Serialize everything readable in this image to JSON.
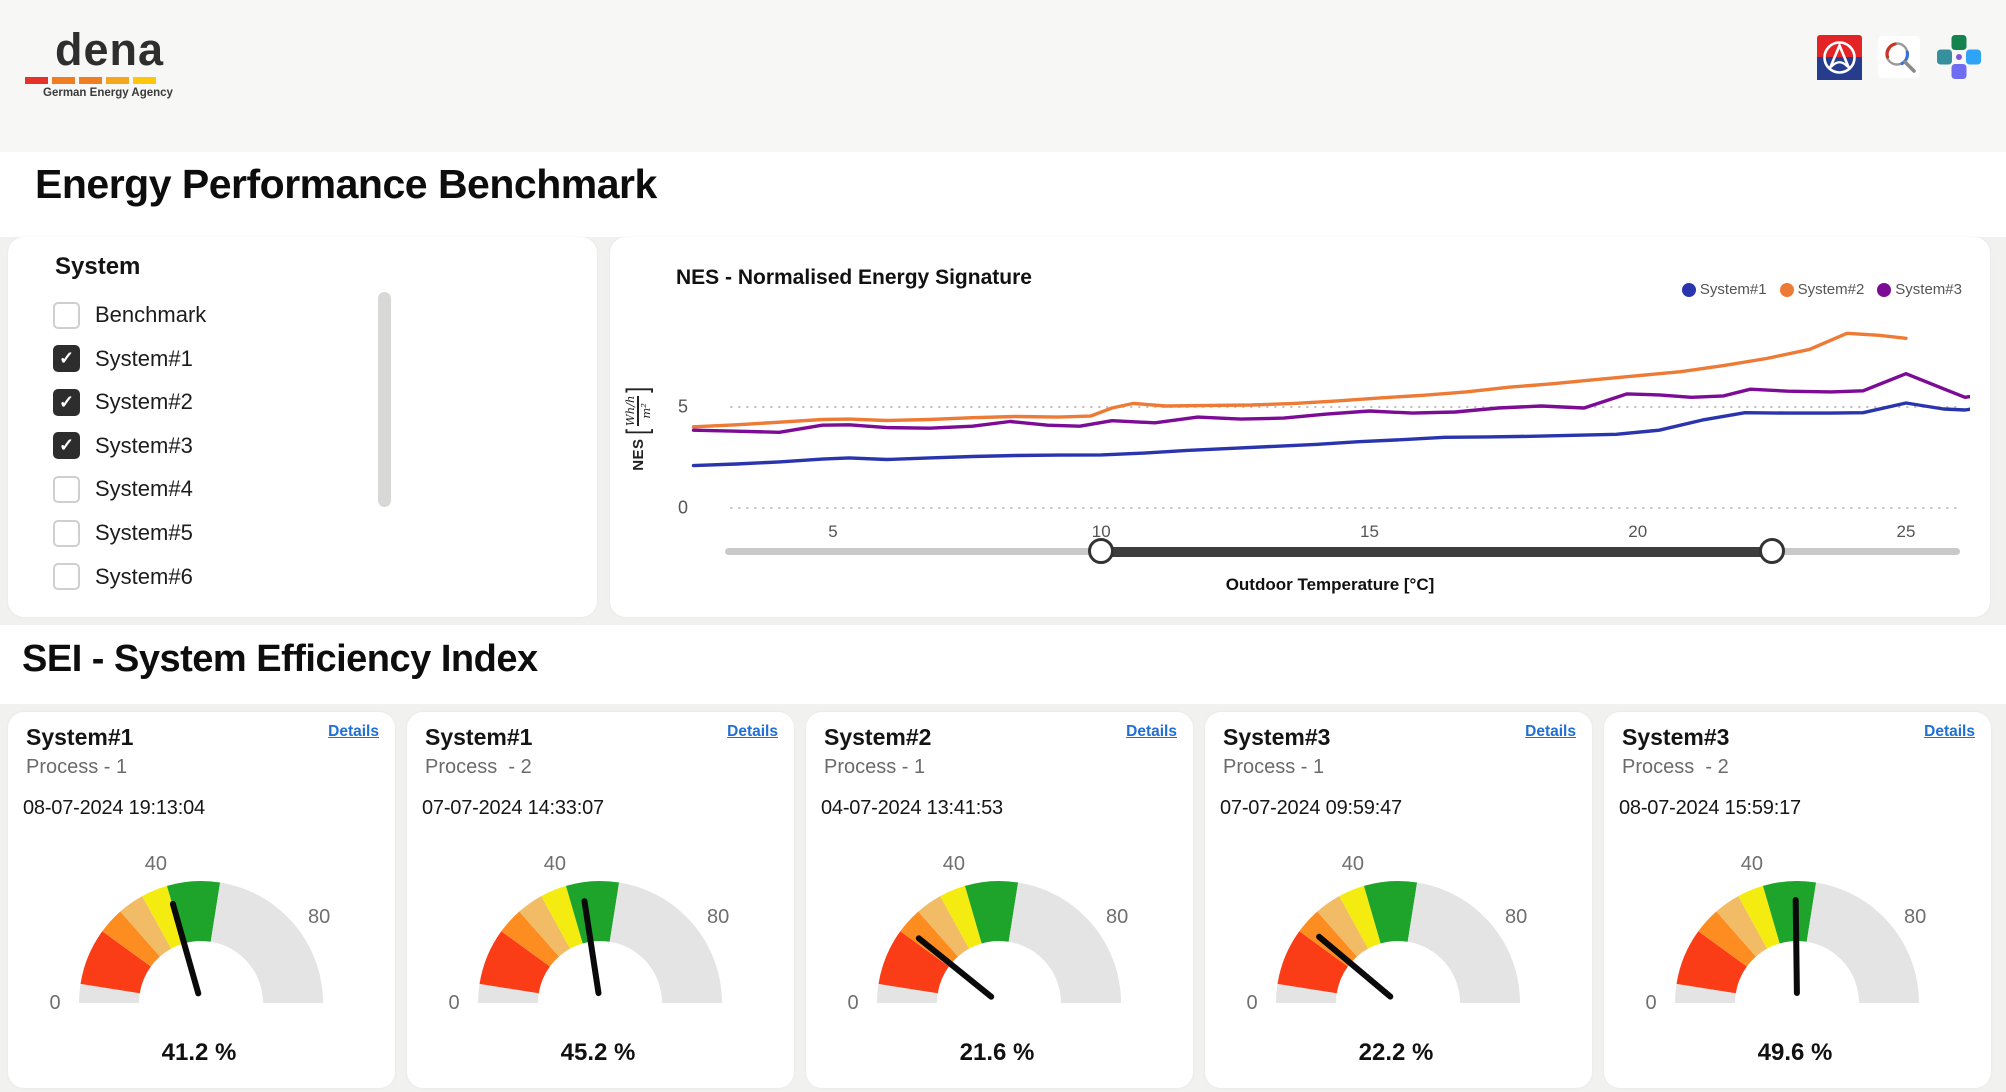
{
  "brand": {
    "name": "dena",
    "tagline": "German Energy Agency",
    "dash_colors": [
      "#e63329",
      "#ef7d21",
      "#ef7d21",
      "#f5a61c",
      "#fdc60b"
    ]
  },
  "header_icons": [
    {
      "name": "brand-circle-a-icon"
    },
    {
      "name": "search-lens-icon"
    },
    {
      "name": "apps-clover-icon"
    }
  ],
  "page": {
    "title": "Energy Performance Benchmark",
    "section2_title": "SEI - System Efficiency Index"
  },
  "system_filter": {
    "title": "System",
    "items": [
      {
        "label": "Benchmark",
        "checked": false
      },
      {
        "label": "System#1",
        "checked": true
      },
      {
        "label": "System#2",
        "checked": true
      },
      {
        "label": "System#3",
        "checked": true
      },
      {
        "label": "System#4",
        "checked": false
      },
      {
        "label": "System#5",
        "checked": false
      },
      {
        "label": "System#6",
        "checked": false
      }
    ]
  },
  "chart_data": {
    "type": "line",
    "title": "NES - Normalised Energy Signature",
    "xlabel": "Outdoor Temperature [°C]",
    "ylabel": "NES",
    "ylabel_unit": {
      "numerator": "Wh/h",
      "denominator": "m²"
    },
    "xlim": [
      2.3,
      26.2
    ],
    "ylim": [
      0,
      9.5
    ],
    "x_ticks": [
      5,
      10,
      15,
      20,
      25
    ],
    "y_ticks": [
      0,
      5
    ],
    "grid": "dotted-horizontal",
    "legend_position": "top-right",
    "series": [
      {
        "name": "System#1",
        "color": "#2a35ad",
        "x": [
          2.4,
          3.2,
          4.0,
          4.8,
          5.3,
          6.0,
          6.8,
          7.6,
          8.4,
          9.2,
          10.0,
          10.8,
          11.6,
          12.4,
          13.2,
          14.0,
          14.8,
          15.6,
          16.4,
          17.2,
          18.0,
          18.8,
          19.6,
          20.4,
          21.2,
          22.0,
          22.8,
          23.6,
          24.2,
          25.0,
          25.7,
          26.1,
          26.4
        ],
        "y": [
          2.1,
          2.18,
          2.28,
          2.42,
          2.48,
          2.4,
          2.48,
          2.55,
          2.6,
          2.62,
          2.63,
          2.72,
          2.85,
          2.95,
          3.05,
          3.15,
          3.28,
          3.38,
          3.5,
          3.52,
          3.55,
          3.6,
          3.65,
          3.85,
          4.35,
          4.72,
          4.7,
          4.7,
          4.72,
          5.2,
          4.9,
          4.85,
          4.97
        ]
      },
      {
        "name": "System#2",
        "color": "#ed7b36",
        "x": [
          2.4,
          3.2,
          4.0,
          4.8,
          5.3,
          6.0,
          6.8,
          7.6,
          8.4,
          9.2,
          9.8,
          10.2,
          10.6,
          11.2,
          12.0,
          12.8,
          13.6,
          14.4,
          15.2,
          16.0,
          16.8,
          17.6,
          18.4,
          19.2,
          20.0,
          20.8,
          21.6,
          22.4,
          23.2,
          23.9,
          24.5,
          25.0
        ],
        "y": [
          4.02,
          4.12,
          4.25,
          4.38,
          4.4,
          4.33,
          4.38,
          4.47,
          4.53,
          4.5,
          4.55,
          4.95,
          5.18,
          5.05,
          5.08,
          5.1,
          5.18,
          5.3,
          5.45,
          5.58,
          5.75,
          5.98,
          6.15,
          6.35,
          6.55,
          6.75,
          7.05,
          7.4,
          7.85,
          8.65,
          8.55,
          8.4
        ]
      },
      {
        "name": "System#3",
        "color": "#7c0b95",
        "x": [
          2.4,
          3.2,
          4.0,
          4.8,
          5.3,
          6.0,
          6.8,
          7.6,
          8.3,
          9.0,
          9.6,
          10.2,
          11.0,
          11.8,
          12.6,
          13.4,
          14.2,
          15.0,
          15.8,
          16.6,
          17.4,
          18.2,
          19.0,
          19.8,
          20.4,
          21.0,
          21.6,
          22.1,
          22.8,
          23.6,
          24.2,
          25.0,
          25.7,
          26.1,
          26.4
        ],
        "y": [
          3.85,
          3.8,
          3.75,
          4.1,
          4.12,
          3.98,
          3.95,
          4.05,
          4.28,
          4.1,
          4.05,
          4.32,
          4.22,
          4.5,
          4.4,
          4.45,
          4.65,
          4.8,
          4.7,
          4.75,
          4.95,
          5.05,
          4.95,
          5.65,
          5.6,
          5.48,
          5.55,
          5.88,
          5.78,
          5.75,
          5.8,
          6.65,
          5.9,
          5.48,
          5.6
        ]
      }
    ]
  },
  "slider": {
    "values": [
      10,
      22.5
    ],
    "axis_min": 2.3,
    "axis_max": 26.2
  },
  "sei": {
    "details_label": "Details",
    "gauge": {
      "min": 0,
      "max": 100,
      "tick_labels": [
        0,
        40,
        80
      ],
      "bands": [
        {
          "from": 0,
          "to": 5,
          "color": "#e4e4e4"
        },
        {
          "from": 5,
          "to": 20,
          "color": "#fa3c17"
        },
        {
          "from": 20,
          "to": 27,
          "color": "#fd8d20"
        },
        {
          "from": 27,
          "to": 34,
          "color": "#f2bc67"
        },
        {
          "from": 34,
          "to": 41,
          "color": "#f4ec10"
        },
        {
          "from": 41,
          "to": 55,
          "color": "#1ea32b"
        },
        {
          "from": 55,
          "to": 100,
          "color": "#e4e4e4"
        }
      ]
    },
    "cards": [
      {
        "system": "System#1",
        "process": "Process - 1",
        "timestamp": "08-07-2024 19:13:04",
        "value_pct": 41.2
      },
      {
        "system": "System#1",
        "process": "Process  - 2",
        "timestamp": "07-07-2024 14:33:07",
        "value_pct": 45.2
      },
      {
        "system": "System#2",
        "process": "Process - 1",
        "timestamp": "04-07-2024 13:41:53",
        "value_pct": 21.6
      },
      {
        "system": "System#3",
        "process": "Process - 1",
        "timestamp": "07-07-2024 09:59:47",
        "value_pct": 22.2
      },
      {
        "system": "System#3",
        "process": "Process  - 2",
        "timestamp": "08-07-2024 15:59:17",
        "value_pct": 49.6
      }
    ]
  }
}
